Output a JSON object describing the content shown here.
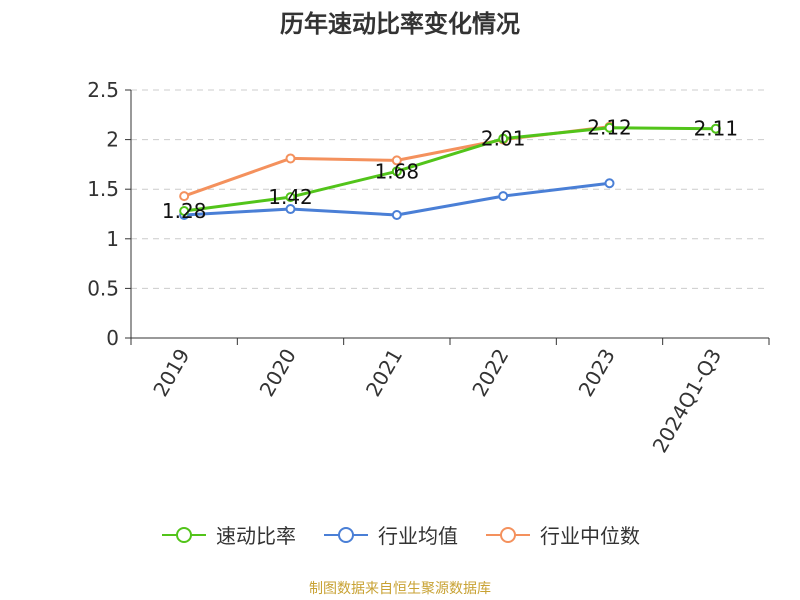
{
  "chart_data": {
    "type": "line",
    "title": "历年速动比率变化情况",
    "categories": [
      "2019",
      "2020",
      "2021",
      "2022",
      "2023",
      "2024Q1-Q3"
    ],
    "ylim": [
      0,
      2.5
    ],
    "yticks": [
      "0",
      "0.5",
      "1",
      "1.5",
      "2",
      "2.5"
    ],
    "grid": true,
    "legend_position": "bottom",
    "series": [
      {
        "name": "速动比率",
        "color": "#52c41a",
        "values": [
          1.28,
          1.42,
          1.68,
          2.01,
          2.12,
          2.11
        ],
        "labels": [
          "1.28",
          "1.42",
          "1.68",
          "2.01",
          "2.12",
          "2.11"
        ]
      },
      {
        "name": "行业均值",
        "color": "#4a7fd6",
        "values": [
          1.24,
          1.3,
          1.24,
          1.43,
          1.56,
          null
        ]
      },
      {
        "name": "行业中位数",
        "color": "#f4915d",
        "values": [
          1.43,
          1.81,
          1.79,
          2.0,
          2.13,
          null
        ]
      }
    ]
  },
  "source_note": {
    "text": "制图数据来自恒生聚源数据库",
    "color": "#c8a233"
  }
}
